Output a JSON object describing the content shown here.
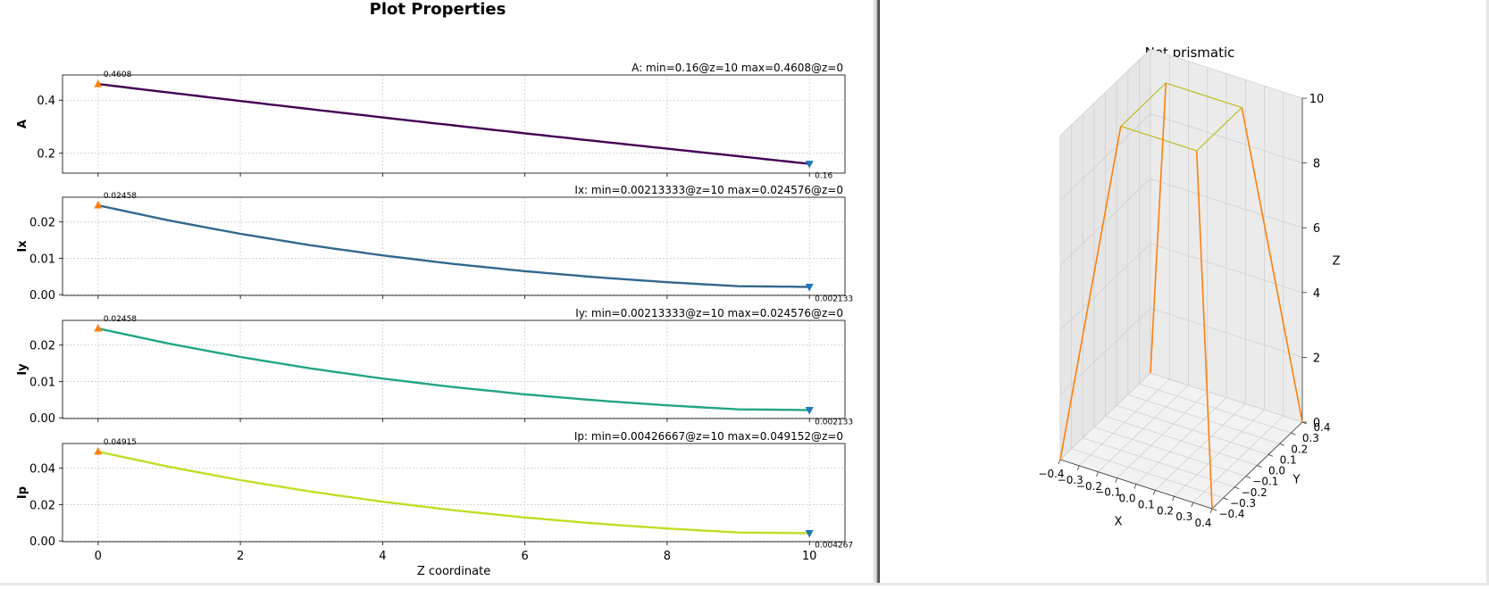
{
  "figure": {
    "title": "Plot Properties"
  },
  "chart_data": [
    {
      "type": "line",
      "title": "A: min=0.16@z=10  max=0.4608@z=0",
      "ylabel": "A",
      "xlabel": "",
      "xlim": [
        -0.5,
        10.5
      ],
      "ylim": [
        0.125,
        0.495
      ],
      "yticks": [
        0.2,
        0.4
      ],
      "ytick_labels": [
        "0.2",
        "0.4"
      ],
      "xticks": [
        0,
        2,
        4,
        6,
        8,
        10
      ],
      "xtick_labels": [],
      "grid": true,
      "color": "#440154",
      "x": [
        0,
        1,
        2,
        3,
        4,
        5,
        6,
        7,
        8,
        9,
        10
      ],
      "y": [
        0.4608,
        0.4286,
        0.3969,
        0.3657,
        0.335,
        0.3048,
        0.275,
        0.2458,
        0.2172,
        0.1888,
        0.16
      ],
      "max_point": {
        "x": 0,
        "y": 0.4608,
        "label": "0.4608",
        "color": "#ff7f0e"
      },
      "min_point": {
        "x": 10,
        "y": 0.16,
        "label": "0.16",
        "color": "#1f77b4"
      }
    },
    {
      "type": "line",
      "title": "Ix: min=0.00213333@z=10  max=0.024576@z=0",
      "ylabel": "Ix",
      "xlabel": "",
      "xlim": [
        -0.5,
        10.5
      ],
      "ylim": [
        -0.0002,
        0.0268
      ],
      "yticks": [
        0.0,
        0.01,
        0.02
      ],
      "ytick_labels": [
        "0.00",
        "0.01",
        "0.02"
      ],
      "xticks": [
        0,
        2,
        4,
        6,
        8,
        10
      ],
      "xtick_labels": [],
      "grid": true,
      "color": "#31688e",
      "x": [
        0,
        1,
        2,
        3,
        4,
        5,
        6,
        7,
        8,
        9,
        10
      ],
      "y": [
        0.024576,
        0.020392,
        0.016729,
        0.013544,
        0.010797,
        0.008448,
        0.006459,
        0.004795,
        0.003421,
        0.002334,
        0.002133
      ],
      "max_point": {
        "x": 0,
        "y": 0.024576,
        "label": "0.02458",
        "color": "#ff7f0e"
      },
      "min_point": {
        "x": 10,
        "y": 0.002133,
        "label": "0.002133",
        "color": "#1f77b4"
      }
    },
    {
      "type": "line",
      "title": "Iy: min=0.00213333@z=10  max=0.024576@z=0",
      "ylabel": "Iy",
      "xlabel": "",
      "xlim": [
        -0.5,
        10.5
      ],
      "ylim": [
        -0.0002,
        0.0268
      ],
      "yticks": [
        0.0,
        0.01,
        0.02
      ],
      "ytick_labels": [
        "0.00",
        "0.01",
        "0.02"
      ],
      "xticks": [
        0,
        2,
        4,
        6,
        8,
        10
      ],
      "xtick_labels": [],
      "grid": true,
      "color": "#21a585",
      "x": [
        0,
        1,
        2,
        3,
        4,
        5,
        6,
        7,
        8,
        9,
        10
      ],
      "y": [
        0.024576,
        0.020392,
        0.016729,
        0.013544,
        0.010797,
        0.008448,
        0.006459,
        0.004795,
        0.003421,
        0.002334,
        0.002133
      ],
      "max_point": {
        "x": 0,
        "y": 0.024576,
        "label": "0.02458",
        "color": "#ff7f0e"
      },
      "min_point": {
        "x": 10,
        "y": 0.002133,
        "label": "0.002133",
        "color": "#1f77b4"
      }
    },
    {
      "type": "line",
      "title": "Ip: min=0.00426667@z=10  max=0.049152@z=0",
      "ylabel": "Ip",
      "xlabel": "Z coordinate",
      "xlim": [
        -0.5,
        10.5
      ],
      "ylim": [
        -0.0004,
        0.0536
      ],
      "yticks": [
        0.0,
        0.02,
        0.04
      ],
      "ytick_labels": [
        "0.00",
        "0.02",
        "0.04"
      ],
      "xticks": [
        0,
        2,
        4,
        6,
        8,
        10
      ],
      "xtick_labels": [
        "0",
        "2",
        "4",
        "6",
        "8",
        "10"
      ],
      "grid": true,
      "color": "#bddf26",
      "x": [
        0,
        1,
        2,
        3,
        4,
        5,
        6,
        7,
        8,
        9,
        10
      ],
      "y": [
        0.049152,
        0.040784,
        0.033458,
        0.027088,
        0.021594,
        0.016896,
        0.012918,
        0.00959,
        0.006842,
        0.004668,
        0.004267
      ],
      "max_point": {
        "x": 0,
        "y": 0.049152,
        "label": "0.04915",
        "color": "#ff7f0e"
      },
      "min_point": {
        "x": 10,
        "y": 0.004267,
        "label": "0.004267",
        "color": "#1f77b4"
      }
    }
  ],
  "view3d": {
    "title": "Not prismatic",
    "xlabel": "X",
    "ylabel": "Y",
    "zlabel": "Z",
    "xticks": [
      -0.4,
      -0.3,
      -0.2,
      -0.1,
      0.0,
      0.1,
      0.2,
      0.3,
      0.4
    ],
    "xtick_labels": [
      "−0.4",
      "−0.3",
      "−0.2",
      "−0.1",
      "0.0",
      "0.1",
      "0.2",
      "0.3",
      "0.4"
    ],
    "yticks": [
      -0.4,
      -0.3,
      -0.2,
      -0.1,
      0.0,
      0.1,
      0.2,
      0.3,
      0.4
    ],
    "ytick_labels": [
      "−0.4",
      "−0.3",
      "−0.2",
      "−0.1",
      "0.0",
      "0.1",
      "0.2",
      "0.3",
      "0.4"
    ],
    "zticks": [
      0,
      2,
      4,
      6,
      8,
      10
    ],
    "ztick_labels": [
      "0",
      "2",
      "4",
      "6",
      "8",
      "10"
    ],
    "edge_color": "#ff7f0e",
    "top_color": "#bcbd22",
    "base_half": 0.4,
    "top_half": 0.2,
    "height": 10
  }
}
